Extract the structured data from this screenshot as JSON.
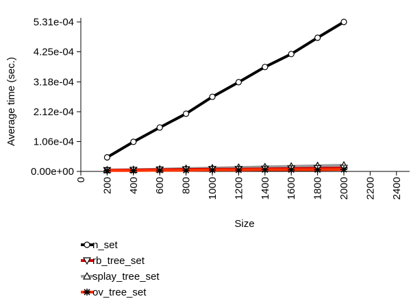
{
  "chart_data": {
    "type": "line",
    "xlabel": "Size",
    "ylabel": "Average time (sec.)",
    "xlim": [
      0,
      2500
    ],
    "ylim": [
      0,
      0.000531
    ],
    "xticks": [
      0,
      200,
      400,
      600,
      800,
      1000,
      1200,
      1400,
      1600,
      1800,
      2000,
      2200,
      2400
    ],
    "xtick_labels": [
      "0",
      "200",
      "400",
      "600",
      "800",
      "1000",
      "1200",
      "1400",
      "1600",
      "1800",
      "2000",
      "2200",
      "2400"
    ],
    "yticks": [
      0,
      0.000106,
      0.000212,
      0.000318,
      0.000425,
      0.000531
    ],
    "ytick_labels": [
      "0.00e+00",
      "1.06e-04",
      "2.12e-04",
      "3.18e-04",
      "4.25e-04",
      "5.31e-04"
    ],
    "grid": false,
    "legend_position": "bottom-left",
    "x": [
      200,
      400,
      600,
      800,
      1000,
      1200,
      1400,
      1600,
      1800,
      2000
    ],
    "series": [
      {
        "name": "n_set",
        "color": "#000000",
        "marker": "circle",
        "values": [
          5e-05,
          0.000105,
          0.000156,
          0.000205,
          0.000265,
          0.000317,
          0.000371,
          0.000417,
          0.000475,
          0.000531
        ]
      },
      {
        "name": "rb_tree_set",
        "color": "#cc0000",
        "marker": "triangle-down",
        "values": [
          4e-06,
          5e-06,
          6e-06,
          7e-06,
          8e-06,
          8e-06,
          9e-06,
          1e-05,
          1.1e-05,
          1.2e-05
        ]
      },
      {
        "name": "splay_tree_set",
        "color": "#999999",
        "marker": "triangle-up",
        "values": [
          5e-06,
          6e-06,
          8e-06,
          1e-05,
          1.2e-05,
          1.4e-05,
          1.6e-05,
          1.8e-05,
          2e-05,
          2.2e-05
        ]
      },
      {
        "name": "ov_tree_set",
        "color": "#ff3300",
        "marker": "asterisk",
        "values": [
          3e-06,
          3e-06,
          4e-06,
          4e-06,
          5e-06,
          5e-06,
          6e-06,
          6e-06,
          6e-06,
          7e-06
        ]
      }
    ]
  }
}
